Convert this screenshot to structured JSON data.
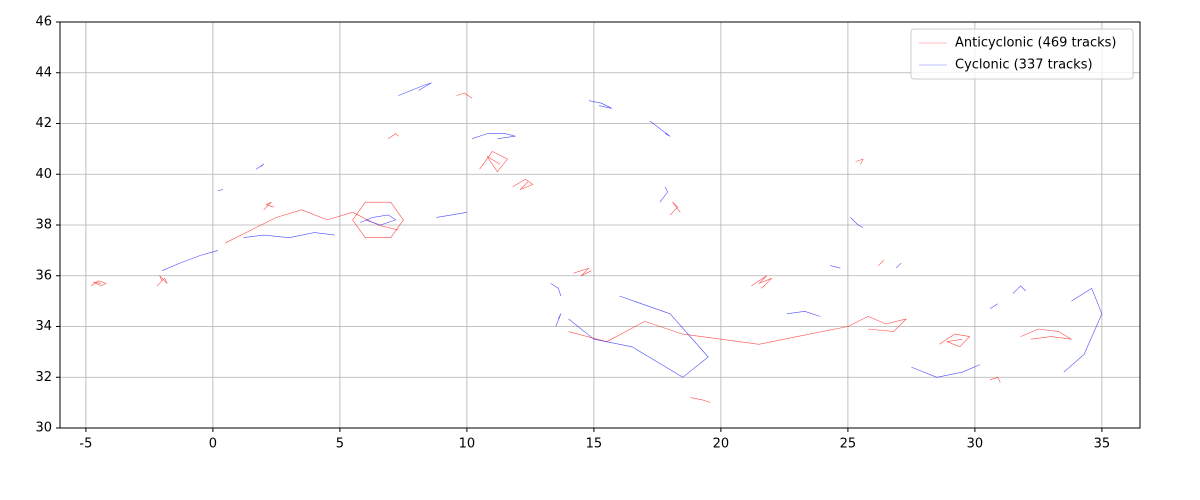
{
  "chart_data": {
    "type": "line",
    "xlim": [
      -6.02,
      36.5
    ],
    "ylim": [
      30,
      46
    ],
    "xticks": [
      -5,
      0,
      5,
      10,
      15,
      20,
      25,
      30,
      35
    ],
    "yticks": [
      30,
      32,
      34,
      36,
      38,
      40,
      42,
      44,
      46
    ],
    "grid": true,
    "legend": "upper right",
    "series": [
      {
        "name": "Anticyclonic (469 tracks)",
        "color": "#ff0000",
        "tracks": [
          {
            "x": [
              -4.8,
              -4.5,
              -4.2,
              -4.4,
              -4.7,
              -4.4
            ],
            "y": [
              35.6,
              35.8,
              35.7,
              35.6,
              35.75,
              35.7
            ]
          },
          {
            "x": [
              -2.2,
              -1.9,
              -1.8,
              -2.1,
              -2.0
            ],
            "y": [
              35.6,
              35.9,
              35.7,
              36.0,
              35.8
            ]
          },
          {
            "x": [
              0.5,
              1.5,
              2.5,
              3.5,
              4.5,
              5.5,
              6.5,
              7.3
            ],
            "y": [
              37.3,
              37.8,
              38.3,
              38.6,
              38.2,
              38.5,
              38.0,
              37.8
            ]
          },
          {
            "x": [
              5.5,
              6,
              7,
              7.5,
              7,
              6,
              5.5
            ],
            "y": [
              38.2,
              38.9,
              38.9,
              38.2,
              37.5,
              37.5,
              38.2
            ]
          },
          {
            "x": [
              2,
              2.3,
              2.1,
              2.4
            ],
            "y": [
              38.6,
              38.9,
              38.8,
              38.7
            ]
          },
          {
            "x": [
              10.5,
              11,
              11.6,
              11.2,
              10.8,
              11.3
            ],
            "y": [
              40.2,
              40.9,
              40.6,
              40.1,
              40.7,
              40.4
            ]
          },
          {
            "x": [
              11.8,
              12.3,
              12.6,
              12.1,
              12.4
            ],
            "y": [
              39.5,
              39.8,
              39.6,
              39.4,
              39.7
            ]
          },
          {
            "x": [
              14.2,
              14.8,
              14.5,
              14.9
            ],
            "y": [
              36.1,
              36.3,
              36.0,
              36.2
            ]
          },
          {
            "x": [
              21.2,
              21.8,
              21.5,
              22,
              21.6
            ],
            "y": [
              35.6,
              36.0,
              35.7,
              35.9,
              35.5
            ]
          },
          {
            "x": [
              14,
              15.5,
              17,
              18.5,
              20,
              21.5,
              23,
              25
            ],
            "y": [
              33.8,
              33.4,
              34.2,
              33.7,
              33.5,
              33.3,
              33.6,
              34.0
            ]
          },
          {
            "x": [
              25,
              25.8,
              26.5,
              27.3,
              26.8,
              25.8
            ],
            "y": [
              34.0,
              34.4,
              34.1,
              34.3,
              33.8,
              33.9
            ]
          },
          {
            "x": [
              28.6,
              29.2,
              29.8,
              29.4,
              28.9,
              29.5
            ],
            "y": [
              33.3,
              33.7,
              33.6,
              33.2,
              33.4,
              33.5
            ]
          },
          {
            "x": [
              31.8,
              32.5,
              33.3,
              33.8,
              33.0,
              32.2
            ],
            "y": [
              33.6,
              33.9,
              33.8,
              33.5,
              33.6,
              33.5
            ]
          },
          {
            "x": [
              25.3,
              25.6,
              25.5
            ],
            "y": [
              40.5,
              40.6,
              40.4
            ]
          },
          {
            "x": [
              18,
              18.3,
              18.1,
              18.4
            ],
            "y": [
              38.4,
              38.7,
              38.9,
              38.5
            ]
          },
          {
            "x": [
              18.8,
              19.3,
              19.6
            ],
            "y": [
              31.2,
              31.1,
              31.0
            ]
          },
          {
            "x": [
              26.2,
              26.4,
              26.3
            ],
            "y": [
              36.4,
              36.6,
              36.5
            ]
          },
          {
            "x": [
              30.6,
              30.9,
              31.0
            ],
            "y": [
              31.9,
              32.0,
              31.8
            ]
          },
          {
            "x": [
              6.9,
              7.2,
              7.3
            ],
            "y": [
              41.4,
              41.6,
              41.5
            ]
          },
          {
            "x": [
              9.6,
              9.9,
              10.2
            ],
            "y": [
              43.1,
              43.2,
              43.0
            ]
          }
        ]
      },
      {
        "name": "Cyclonic (337 tracks)",
        "color": "#0000ff",
        "tracks": [
          {
            "x": [
              7.3,
              7.8,
              8.3,
              8.6,
              8.1
            ],
            "y": [
              43.1,
              43.3,
              43.5,
              43.6,
              43.3
            ]
          },
          {
            "x": [
              14.8,
              15.3,
              15.7,
              15.2
            ],
            "y": [
              42.9,
              42.8,
              42.6,
              42.7
            ]
          },
          {
            "x": [
              17.2,
              17.6,
              18.0,
              17.8
            ],
            "y": [
              42.1,
              41.8,
              41.5,
              41.6
            ]
          },
          {
            "x": [
              10.2,
              10.8,
              11.5,
              11.9,
              11.2
            ],
            "y": [
              41.4,
              41.6,
              41.6,
              41.5,
              41.4
            ]
          },
          {
            "x": [
              5.8,
              6.3,
              6.9,
              7.2,
              6.6,
              6.0
            ],
            "y": [
              38.1,
              38.3,
              38.4,
              38.2,
              38.0,
              38.2
            ]
          },
          {
            "x": [
              1.2,
              2,
              3,
              4,
              4.8
            ],
            "y": [
              37.5,
              37.6,
              37.5,
              37.7,
              37.6
            ]
          },
          {
            "x": [
              -2,
              -1.3,
              -0.5,
              0.2
            ],
            "y": [
              36.2,
              36.5,
              36.8,
              37.0
            ]
          },
          {
            "x": [
              1.7,
              2.0,
              1.9
            ],
            "y": [
              40.2,
              40.4,
              40.3
            ]
          },
          {
            "x": [
              0.2,
              0.4
            ],
            "y": [
              39.35,
              39.4
            ]
          },
          {
            "x": [
              17.6,
              17.9,
              17.8
            ],
            "y": [
              38.9,
              39.3,
              39.5
            ]
          },
          {
            "x": [
              13.3,
              13.6,
              13.7
            ],
            "y": [
              35.7,
              35.5,
              35.2
            ]
          },
          {
            "x": [
              13.5,
              13.7,
              13.6
            ],
            "y": [
              34.0,
              34.5,
              34.3
            ]
          },
          {
            "x": [
              14,
              15,
              16.5,
              17.5,
              18.5,
              19.5,
              18,
              16
            ],
            "y": [
              34.3,
              33.5,
              33.2,
              32.6,
              32.0,
              32.8,
              34.5,
              35.2
            ]
          },
          {
            "x": [
              22.6,
              23.3,
              23.9
            ],
            "y": [
              34.5,
              34.6,
              34.4
            ]
          },
          {
            "x": [
              24.3,
              24.7
            ],
            "y": [
              36.4,
              36.3
            ]
          },
          {
            "x": [
              25.1,
              25.4,
              25.6
            ],
            "y": [
              38.3,
              38.0,
              37.9
            ]
          },
          {
            "x": [
              26.9,
              27.1
            ],
            "y": [
              36.3,
              36.5
            ]
          },
          {
            "x": [
              31.5,
              31.8,
              32.0
            ],
            "y": [
              35.3,
              35.6,
              35.4
            ]
          },
          {
            "x": [
              30.6,
              30.9
            ],
            "y": [
              34.7,
              34.9
            ]
          },
          {
            "x": [
              33.5,
              34.3,
              35,
              34.6,
              33.8
            ],
            "y": [
              32.2,
              32.9,
              34.5,
              35.5,
              35.0
            ]
          },
          {
            "x": [
              27.5,
              28.5,
              29.5,
              30.2
            ],
            "y": [
              32.4,
              32.0,
              32.2,
              32.5
            ]
          },
          {
            "x": [
              8.8,
              9.4,
              10.0
            ],
            "y": [
              38.3,
              38.4,
              38.5
            ]
          }
        ]
      }
    ]
  }
}
